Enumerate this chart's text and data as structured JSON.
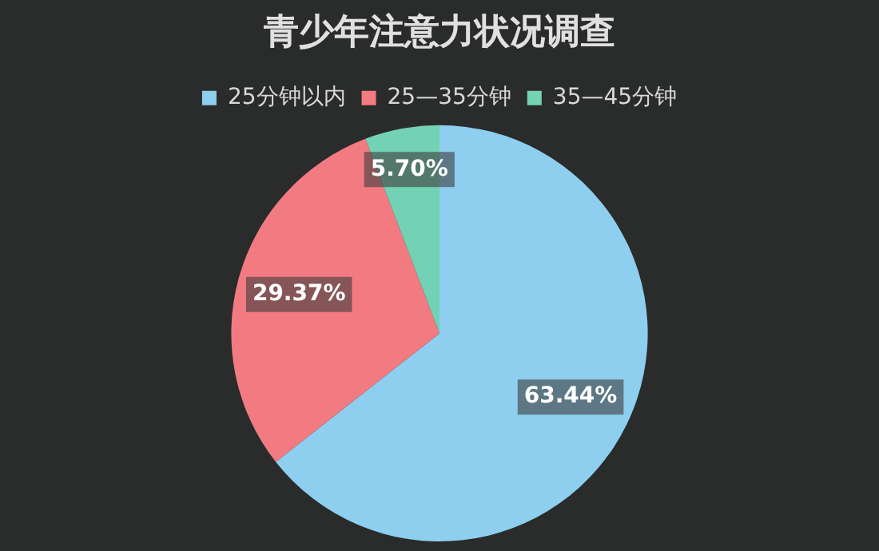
{
  "chart_data": {
    "type": "pie",
    "title": "青少年注意力状况调查",
    "categories": [
      "25分钟以内",
      "25—35分钟",
      "35—45分钟"
    ],
    "values": [
      63.44,
      29.37,
      5.7
    ],
    "value_labels": [
      "63.44%",
      "29.37%",
      "5.70%"
    ],
    "colors": [
      "#8ecfef",
      "#f27b82",
      "#74d2b4"
    ],
    "legend": "top"
  }
}
